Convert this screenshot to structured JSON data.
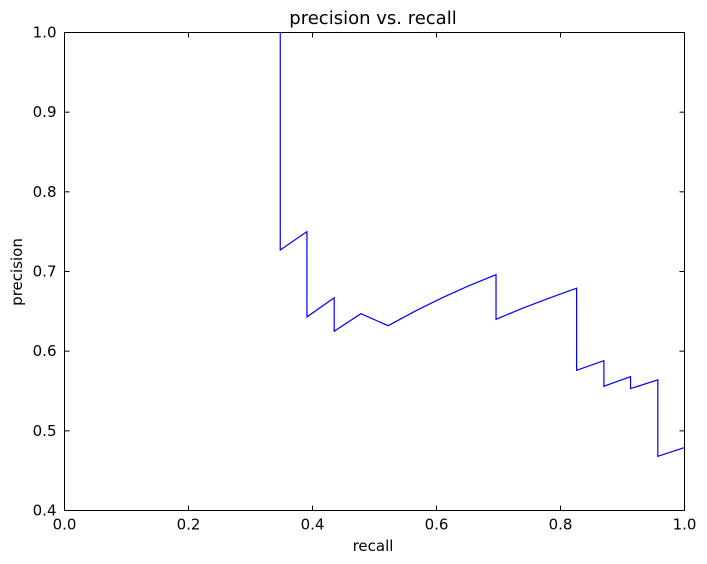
{
  "chart_data": {
    "type": "line",
    "title": "precision vs. recall",
    "xlabel": "recall",
    "ylabel": "precision",
    "xlim": [
      0.0,
      1.0
    ],
    "ylim": [
      0.4,
      1.0
    ],
    "xticks": [
      "0.0",
      "0.2",
      "0.4",
      "0.6",
      "0.8",
      "1.0"
    ],
    "yticks": [
      "0.4",
      "0.5",
      "0.6",
      "0.7",
      "0.8",
      "0.9",
      "1.0"
    ],
    "grid": false,
    "series": [
      {
        "color": "#0000ff",
        "x": [
          0.348,
          0.348,
          0.391,
          0.391,
          0.435,
          0.435,
          0.478,
          0.522,
          0.565,
          0.609,
          0.652,
          0.696,
          0.696,
          0.739,
          0.783,
          0.826,
          0.826,
          0.87,
          0.87,
          0.913,
          0.913,
          0.957,
          0.957,
          1.0
        ],
        "y": [
          1.0,
          0.727,
          0.75,
          0.643,
          0.667,
          0.625,
          0.647,
          0.632,
          0.65,
          0.667,
          0.682,
          0.696,
          0.64,
          0.654,
          0.667,
          0.679,
          0.576,
          0.588,
          0.556,
          0.568,
          0.553,
          0.564,
          0.468,
          0.479
        ]
      }
    ]
  }
}
